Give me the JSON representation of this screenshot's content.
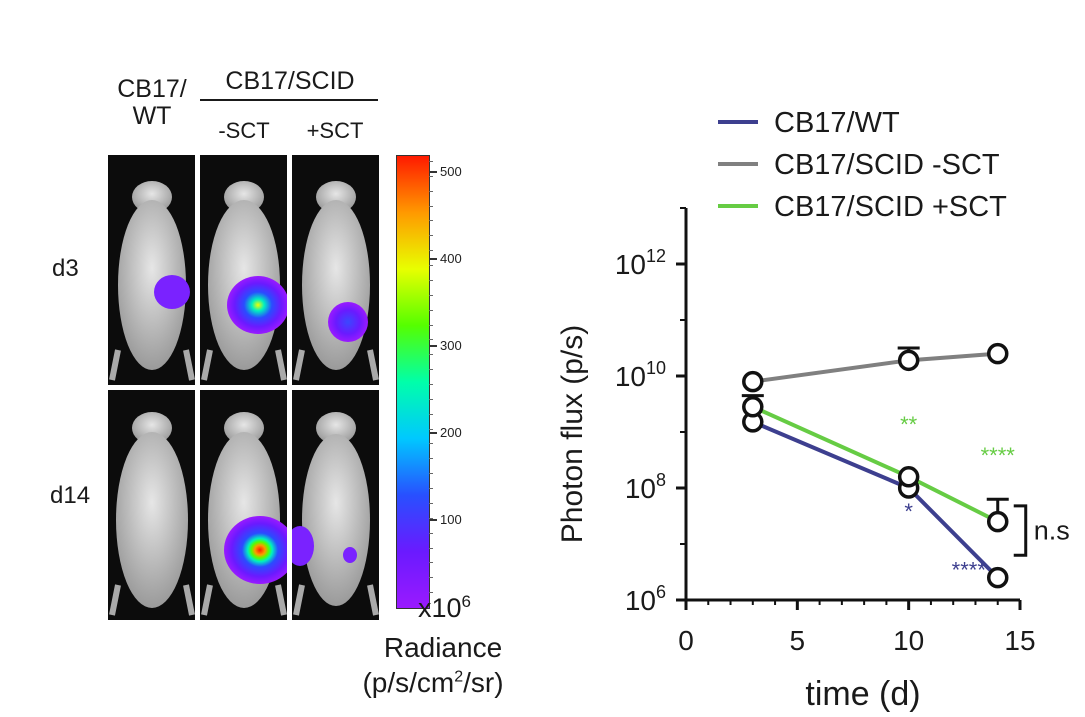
{
  "imaging": {
    "header": {
      "wt_label": "CB17/\nWT",
      "scid_label": "CB17/SCID",
      "minus_sct": "-SCT",
      "plus_sct": "+SCT"
    },
    "rows": [
      "d3",
      "d14"
    ],
    "colorbar": {
      "ticks": [
        "500",
        "400",
        "300",
        "200",
        "100"
      ],
      "unit": "x10",
      "unit_exp": "6",
      "title": "Radiance",
      "units_pre": "(p/s/cm",
      "units_sup": "2",
      "units_post": "/sr)",
      "colors": [
        "#ff1a00",
        "#ff9900",
        "#e8ff00",
        "#55ff00",
        "#00ffaa",
        "#00c8ff",
        "#2850ff",
        "#6a1aff",
        "#9a1aff"
      ]
    }
  },
  "chart_data": {
    "type": "line",
    "title": "",
    "xlabel": "time (d)",
    "ylabel": "Photon flux (p/s)",
    "xlim": [
      0,
      15
    ],
    "ylim_log10": [
      6,
      13
    ],
    "x_ticks": [
      0,
      5,
      10,
      15
    ],
    "y_ticks_log10": [
      6,
      8,
      10,
      12
    ],
    "y_tick_base": "10",
    "x": [
      3,
      10,
      14
    ],
    "series": [
      {
        "name": "CB17/WT",
        "color": "#3d3f8f",
        "log10_values": [
          9.18,
          8.0,
          6.4
        ],
        "err_up_log10": [
          0,
          0,
          0
        ]
      },
      {
        "name": "CB17/SCID -SCT",
        "color": "#808080",
        "log10_values": [
          9.9,
          10.28,
          10.4
        ],
        "err_up_log10": [
          0,
          0.22,
          0
        ]
      },
      {
        "name": "CB17/SCID +SCT",
        "color": "#66cc44",
        "log10_values": [
          9.45,
          8.2,
          7.4
        ],
        "err_up_log10": [
          0.2,
          0,
          0.4
        ]
      }
    ],
    "annotations": [
      {
        "text": "**",
        "x": 10,
        "log10_y": 9.0,
        "color": "#66cc44"
      },
      {
        "text": "****",
        "x": 14,
        "log10_y": 8.45,
        "color": "#66cc44"
      },
      {
        "text": "*",
        "x": 10,
        "log10_y": 7.45,
        "color": "#3d3f8f"
      },
      {
        "text": "****",
        "x": 12.7,
        "log10_y": 6.4,
        "color": "#3d3f8f"
      }
    ],
    "bracket_label": "n.s"
  }
}
